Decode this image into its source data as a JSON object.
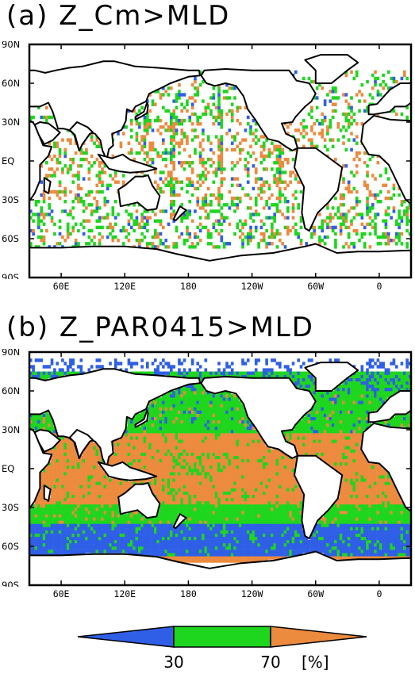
{
  "panels": [
    {
      "title": "(a) Z_Cm>MLD",
      "pattern": "sparse"
    },
    {
      "title": "(b) Z_PAR0415>MLD",
      "pattern": "dense"
    }
  ],
  "lat_labels": [
    "90N",
    "60N",
    "30N",
    "EQ",
    "30S",
    "60S",
    "90S"
  ],
  "lon_labels": [
    "60E",
    "120E",
    "180",
    "120W",
    "60W",
    "0"
  ],
  "colorbar": {
    "labels": [
      "30",
      "70"
    ],
    "unit": "[%]",
    "colors": {
      "low": "#2f5fe6",
      "mid": "#1ed61e",
      "high": "#ec8a3e"
    }
  }
}
